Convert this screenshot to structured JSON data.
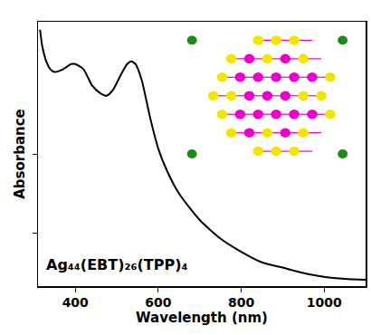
{
  "chart_data": {
    "type": "line",
    "annotation": "Ag₄₄(EBT)₂₆(TPP)₄",
    "x_label": "Wavelength (nm)",
    "y_label": "Absorbance",
    "x": [
      315,
      320,
      330,
      340,
      350,
      370,
      390,
      400,
      420,
      440,
      460,
      475,
      490,
      510,
      525,
      535,
      545,
      560,
      580,
      600,
      620,
      650,
      700,
      750,
      800,
      850,
      900,
      950,
      1000,
      1050,
      1100
    ],
    "values": [
      0.97,
      0.91,
      0.85,
      0.82,
      0.81,
      0.82,
      0.84,
      0.84,
      0.82,
      0.76,
      0.73,
      0.72,
      0.74,
      0.8,
      0.84,
      0.85,
      0.84,
      0.78,
      0.64,
      0.52,
      0.44,
      0.35,
      0.25,
      0.18,
      0.13,
      0.09,
      0.07,
      0.05,
      0.035,
      0.027,
      0.024
    ],
    "color": "#000000",
    "xlim": [
      310,
      1100
    ],
    "xticks": [
      400,
      600,
      800,
      1000
    ],
    "ylim": [
      0,
      1
    ],
    "yticks": [
      0.2,
      0.5
    ],
    "tick_labels": "x",
    "grid": false
  }
}
